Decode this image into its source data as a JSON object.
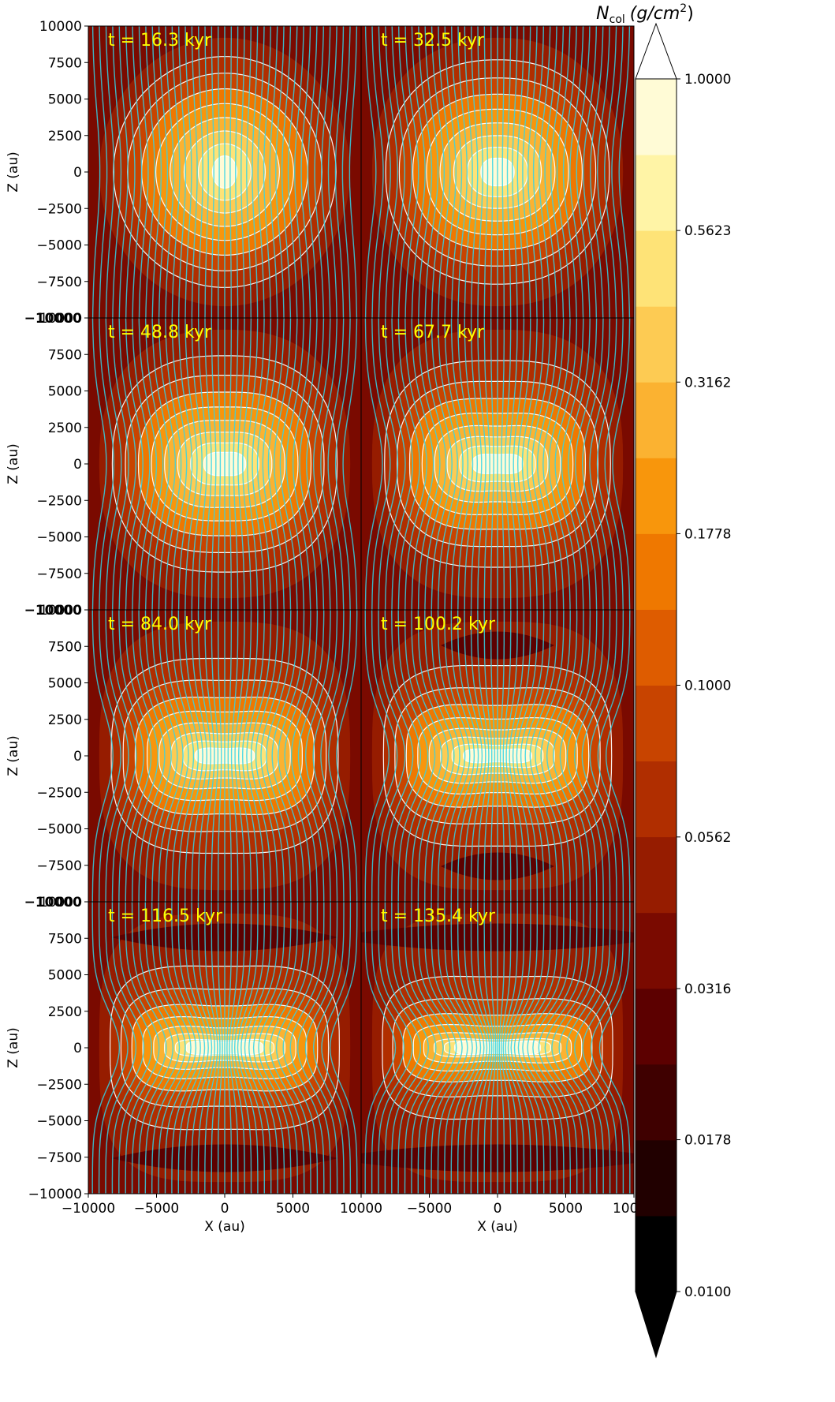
{
  "chart_data": {
    "type": "heatmap",
    "title": "",
    "layout": "4 rows x 2 columns of panels, shared axes",
    "xlabel": "X (au)",
    "ylabel": "Z (au)",
    "xlim": [
      -10000,
      10000
    ],
    "ylim": [
      -10000,
      10000
    ],
    "xticks": [
      -10000,
      -5000,
      0,
      5000,
      10000
    ],
    "xtick_labels": [
      "−10000",
      "−5000",
      "0",
      "5000",
      "10000"
    ],
    "yticks": [
      10000,
      7500,
      5000,
      2500,
      0,
      -2500,
      -5000,
      -7500,
      -10000
    ],
    "ytick_labels": [
      "10000",
      "7500",
      "5000",
      "2500",
      "0",
      "−2500",
      "−5000",
      "−7500",
      "−10000"
    ],
    "grid": false,
    "overlays": [
      "white column-density contour lines",
      "cyan magnetic field lines"
    ],
    "panels": [
      {
        "time_label": "t = 16.3 kyr",
        "time_kyr": 16.3,
        "stage": 0
      },
      {
        "time_label": "t = 32.5 kyr",
        "time_kyr": 32.5,
        "stage": 1
      },
      {
        "time_label": "t = 48.8 kyr",
        "time_kyr": 48.8,
        "stage": 2
      },
      {
        "time_label": "t = 67.7 kyr",
        "time_kyr": 67.7,
        "stage": 3
      },
      {
        "time_label": "t = 84.0 kyr",
        "time_kyr": 84.0,
        "stage": 4
      },
      {
        "time_label": "t = 100.2 kyr",
        "time_kyr": 100.2,
        "stage": 5
      },
      {
        "time_label": "t = 116.5 kyr",
        "time_kyr": 116.5,
        "stage": 6
      },
      {
        "time_label": "t = 135.4 kyr",
        "time_kyr": 135.4,
        "stage": 7
      }
    ],
    "colorbar": {
      "title_main": "N",
      "title_sub": "col",
      "title_units": "(g/cm",
      "title_units_sup": "2",
      "title_units_end": ")",
      "scale": "log",
      "range": [
        0.01,
        1.0
      ],
      "extend": "both",
      "tick_values": [
        0.01,
        0.0178,
        0.0316,
        0.0562,
        0.1,
        0.1778,
        0.3162,
        0.5623,
        1.0
      ],
      "tick_labels": [
        "0.0100",
        "0.0178",
        "0.0316",
        "0.0562",
        "0.1000",
        "0.1778",
        "0.3162",
        "0.5623",
        "1.0000"
      ],
      "levels": 16,
      "colors": [
        "#000000",
        "#210000",
        "#3f0000",
        "#5c0000",
        "#7a0a00",
        "#961c00",
        "#b02e00",
        "#c84400",
        "#de5c00",
        "#ef7800",
        "#f8960c",
        "#fbb231",
        "#fdcb53",
        "#fee377",
        "#fff4a6",
        "#fffbd6"
      ],
      "over_color": "#ffffff",
      "under_color": "#000000"
    }
  },
  "colors": {
    "contour_line": "#ffffff",
    "field_line": "#33d4e6",
    "time_label": "#ffff00"
  }
}
